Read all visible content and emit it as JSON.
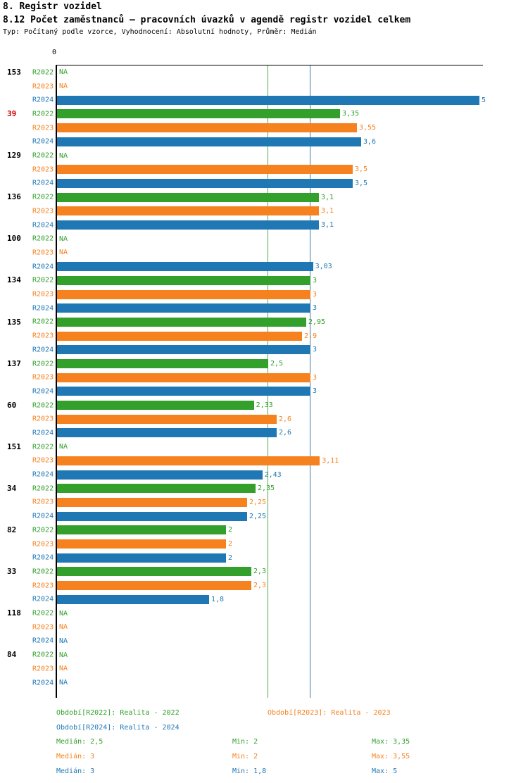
{
  "title": "8. Registr vozidel",
  "subtitle": "8.12 Počet zaměstnanců – pracovních úvazků v agendě registr vozidel celkem",
  "meta": "Typ: Počítaný podle vzorce, Vyhodnocení: Absolutní hodnoty, Průměr: Medián",
  "colors": {
    "r2022": "#33a02c",
    "r2023": "#f5821f",
    "r2024": "#1f77b4",
    "highlight_id": "#cc0000",
    "axis": "#000000"
  },
  "chart_data": {
    "type": "bar",
    "orientation": "horizontal",
    "title": "8.12 Počet zaměstnanců – pracovních úvazků v agendě registr vozidel celkem",
    "x_origin_label": "0",
    "xlim": [
      0,
      5
    ],
    "series": [
      "R2022",
      "R2023",
      "R2024"
    ],
    "median_lines": [
      {
        "value": 2.5,
        "series": "R2022"
      },
      {
        "value": 3,
        "series": "R2023"
      },
      {
        "value": 3,
        "series": "R2024"
      }
    ],
    "groups": [
      {
        "id": "153",
        "highlight": false,
        "values": [
          null,
          null,
          5
        ],
        "value_labels": [
          "NA",
          "NA",
          "5"
        ]
      },
      {
        "id": "39",
        "highlight": true,
        "values": [
          3.35,
          3.55,
          3.6
        ],
        "value_labels": [
          "3,35",
          "3,55",
          "3,6"
        ]
      },
      {
        "id": "129",
        "highlight": false,
        "values": [
          null,
          3.5,
          3.5
        ],
        "value_labels": [
          "NA",
          "3,5",
          "3,5"
        ]
      },
      {
        "id": "136",
        "highlight": false,
        "values": [
          3.1,
          3.1,
          3.1
        ],
        "value_labels": [
          "3,1",
          "3,1",
          "3,1"
        ]
      },
      {
        "id": "100",
        "highlight": false,
        "values": [
          null,
          null,
          3.03
        ],
        "value_labels": [
          "NA",
          "NA",
          "3,03"
        ]
      },
      {
        "id": "134",
        "highlight": false,
        "values": [
          3,
          3,
          3
        ],
        "value_labels": [
          "3",
          "3",
          "3"
        ]
      },
      {
        "id": "135",
        "highlight": false,
        "values": [
          2.95,
          2.9,
          3
        ],
        "value_labels": [
          "2,95",
          "2,9",
          "3"
        ]
      },
      {
        "id": "137",
        "highlight": false,
        "values": [
          2.5,
          3,
          3
        ],
        "value_labels": [
          "2,5",
          "3",
          "3"
        ]
      },
      {
        "id": "60",
        "highlight": false,
        "values": [
          2.33,
          2.6,
          2.6
        ],
        "value_labels": [
          "2,33",
          "2,6",
          "2,6"
        ]
      },
      {
        "id": "151",
        "highlight": false,
        "values": [
          null,
          3.11,
          2.43
        ],
        "value_labels": [
          "NA",
          "3,11",
          "2,43"
        ]
      },
      {
        "id": "34",
        "highlight": false,
        "values": [
          2.35,
          2.25,
          2.25
        ],
        "value_labels": [
          "2,35",
          "2,25",
          "2,25"
        ]
      },
      {
        "id": "82",
        "highlight": false,
        "values": [
          2,
          2,
          2
        ],
        "value_labels": [
          "2",
          "2",
          "2"
        ]
      },
      {
        "id": "33",
        "highlight": false,
        "values": [
          2.3,
          2.3,
          1.8
        ],
        "value_labels": [
          "2,3",
          "2,3",
          "1,8"
        ]
      },
      {
        "id": "118",
        "highlight": false,
        "values": [
          null,
          null,
          null
        ],
        "value_labels": [
          "NA",
          "NA",
          "NA"
        ]
      },
      {
        "id": "84",
        "highlight": false,
        "values": [
          null,
          null,
          null
        ],
        "value_labels": [
          "NA",
          "NA",
          "NA"
        ]
      }
    ]
  },
  "legend": [
    {
      "series": "R2022",
      "label": "Období[R2022]: Realita - 2022"
    },
    {
      "series": "R2023",
      "label": "Období[R2023]: Realita - 2023"
    },
    {
      "series": "R2024",
      "label": "Období[R2024]: Realita - 2024"
    }
  ],
  "stats": [
    {
      "series": "R2022",
      "median": "Medián: 2,5",
      "min": "Min: 2",
      "max": "Max: 3,35"
    },
    {
      "series": "R2023",
      "median": "Medián: 3",
      "min": "Min: 2",
      "max": "Max: 3,55"
    },
    {
      "series": "R2024",
      "median": "Medián: 3",
      "min": "Min: 1,8",
      "max": "Max: 5"
    }
  ]
}
